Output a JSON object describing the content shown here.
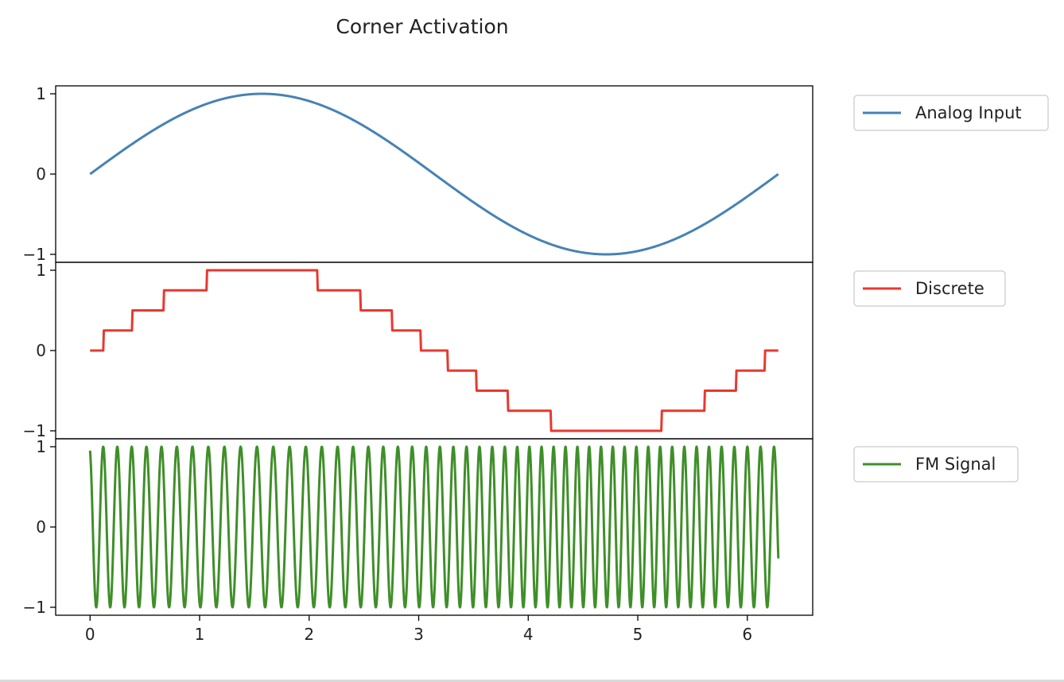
{
  "chart_data": {
    "type": "line",
    "title": "Corner Activation",
    "x_range": [
      0,
      6.283
    ],
    "xlim": [
      -0.314,
      6.597
    ],
    "x_ticks": [
      "0",
      "1",
      "2",
      "3",
      "4",
      "5",
      "6"
    ],
    "panels": [
      {
        "series": {
          "name": "Analog Input",
          "color": "#4682b4",
          "function": "sin(x)",
          "sample_points": [
            [
              0,
              0
            ],
            [
              0.785,
              0.707
            ],
            [
              1.571,
              1
            ],
            [
              2.356,
              0.707
            ],
            [
              3.142,
              0
            ],
            [
              3.927,
              -0.707
            ],
            [
              4.712,
              -1
            ],
            [
              5.498,
              -0.707
            ],
            [
              6.283,
              0
            ]
          ]
        },
        "ylim": [
          -1.0,
          1.0
        ],
        "y_ticks": [
          "1",
          "0",
          "−1"
        ],
        "legend_position": "top-right-outside"
      },
      {
        "series": {
          "name": "Discrete",
          "color": "#e8382f",
          "function": "round(sin(x) * 4) / 4",
          "step_size": 0.25,
          "levels": [
            0,
            0.25,
            0.5,
            0.75,
            1,
            0.75,
            0.5,
            0.25,
            0,
            -0.25,
            -0.5,
            -0.75,
            -1,
            -0.75,
            -0.5,
            -0.25,
            0
          ]
        },
        "ylim": [
          -1.0,
          1.0
        ],
        "y_ticks": [
          "1",
          "0",
          "−1"
        ],
        "legend_position": "top-right-outside"
      },
      {
        "series": {
          "name": "FM Signal",
          "color": "#3f8f29",
          "function": "sin(2π·(8·x + 1.3·cos(x)))",
          "carrier_cycles_per_unit": 8,
          "modulation_index": 1.3,
          "approx_cycles_total": 35
        },
        "ylim": [
          -1.0,
          1.0
        ],
        "y_ticks": [
          "1",
          "0",
          "−1"
        ],
        "legend_position": "top-right-outside"
      }
    ],
    "grid": false
  }
}
